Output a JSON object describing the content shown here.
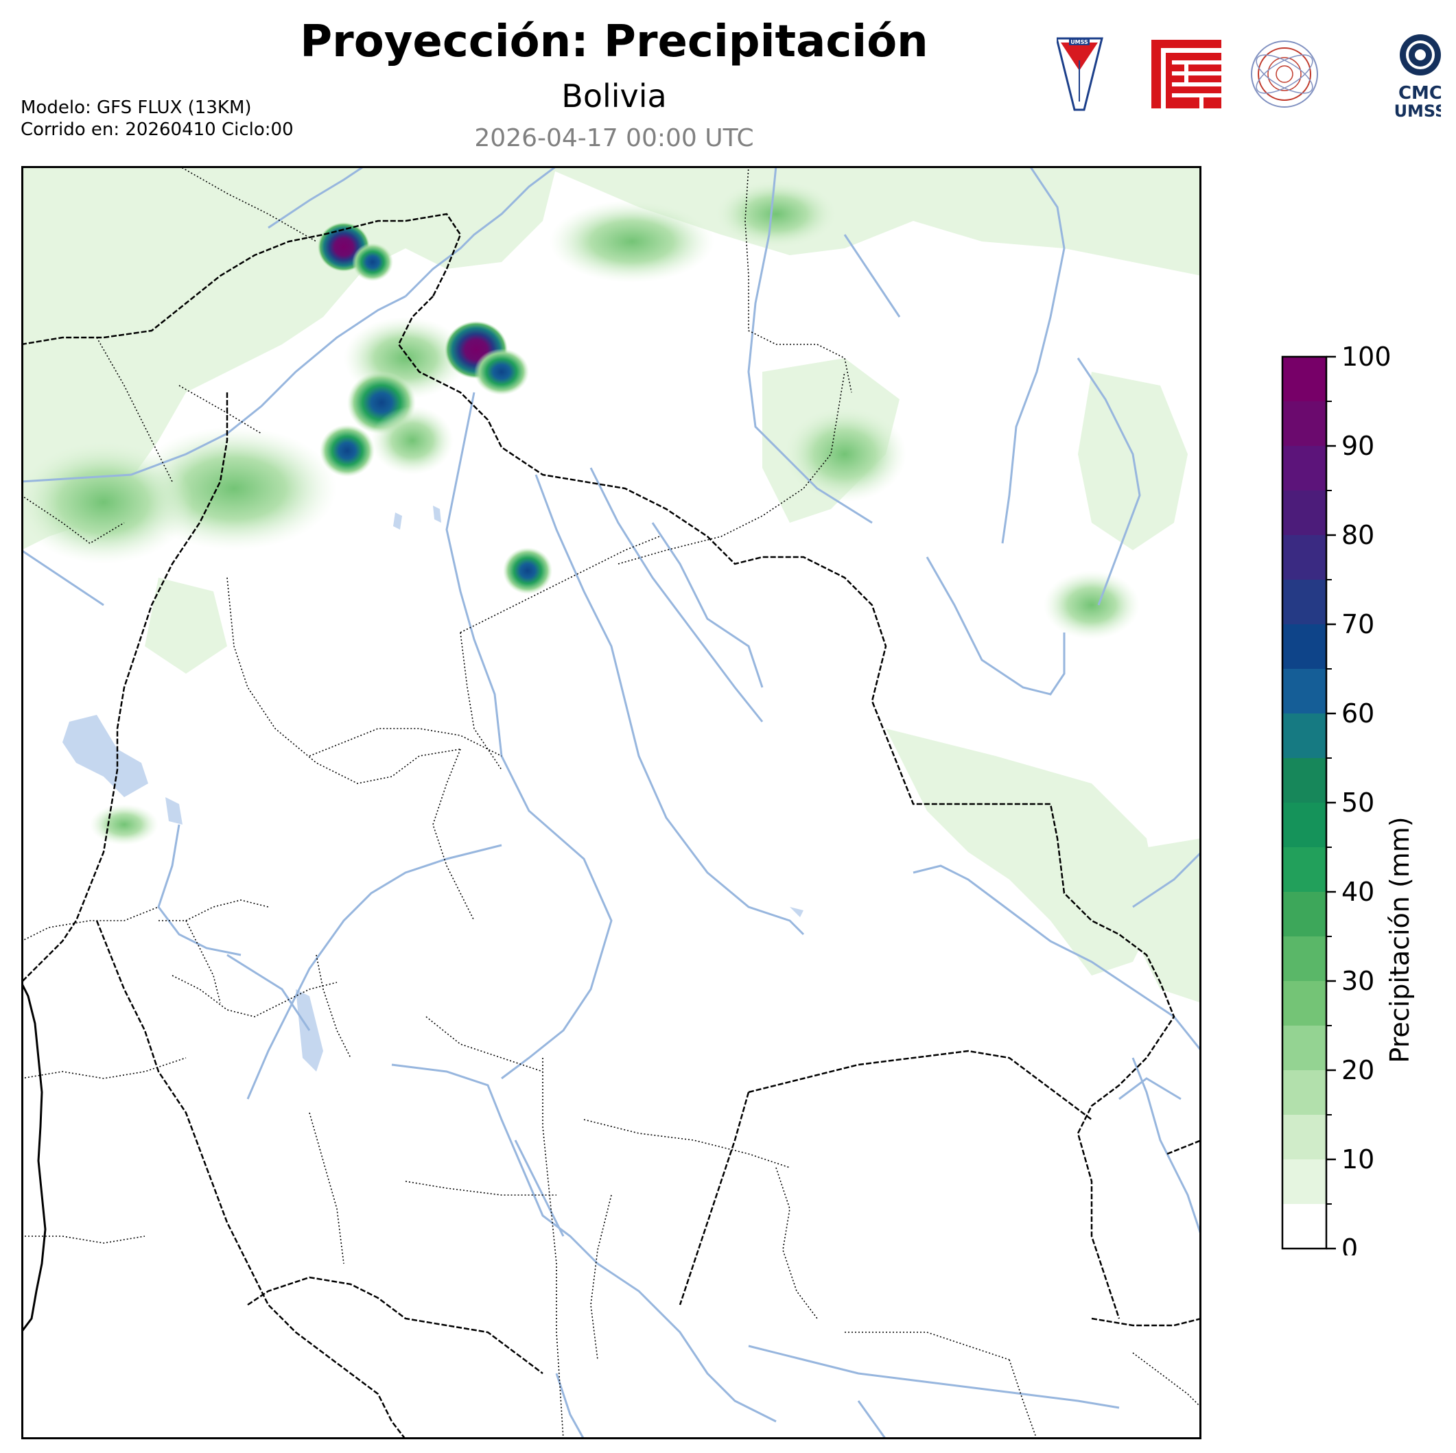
{
  "header": {
    "title": "Proyección: Precipitación",
    "region": "Bolivia",
    "valid_time": "2026-04-17 00:00 UTC",
    "model_line": "Modelo: GFS FLUX (13KM)",
    "run_line": "Corrido en: 20260410 Ciclo:00"
  },
  "logos": [
    {
      "name": "umss-shield-logo",
      "text": "UMSS"
    },
    {
      "name": "red-fcyt-logo",
      "text": ""
    },
    {
      "name": "departamento-fisica-seal",
      "text": "DEPARTAMENTO DE FISICA"
    },
    {
      "name": "cmc-umss-logo",
      "text": "CMC UMSS"
    }
  ],
  "colorbar": {
    "label": "Precipitación (mm)",
    "ticks": [
      0,
      10,
      20,
      30,
      40,
      50,
      60,
      70,
      80,
      90,
      100
    ],
    "levels": [
      0,
      5,
      10,
      15,
      20,
      25,
      30,
      35,
      40,
      45,
      50,
      55,
      60,
      65,
      70,
      75,
      80,
      85,
      90,
      95,
      100
    ],
    "colors": [
      "#ffffff",
      "#e5f5e0",
      "#d0ecc9",
      "#b2e0ac",
      "#94d392",
      "#74c476",
      "#5ab768",
      "#3da75a",
      "#22a05b",
      "#15935a",
      "#17875a",
      "#167a82",
      "#155e97",
      "#0e4489",
      "#253a85",
      "#3a2a82",
      "#4c1c7a",
      "#5c147a",
      "#6b0a6e",
      "#770068"
    ]
  },
  "map_colors": {
    "rivers": "#97b6de",
    "lakes": "#c5d7ef",
    "borders": "#000000",
    "frame": "#000000"
  }
}
